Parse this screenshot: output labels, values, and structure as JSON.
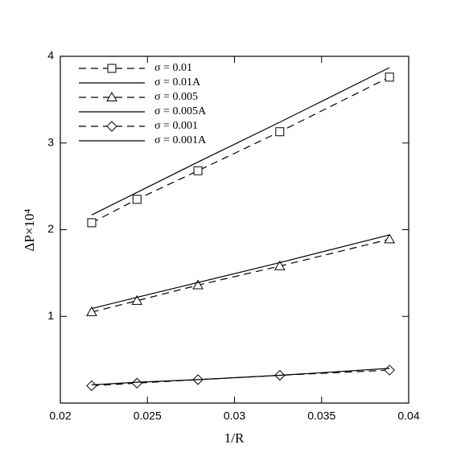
{
  "chart_data": {
    "type": "line",
    "x_label": "1/R",
    "y_label": "ΔP×10⁴",
    "x": [
      0.0218,
      0.0244,
      0.0279,
      0.0326,
      0.0389
    ],
    "xlim": [
      0.02,
      0.04
    ],
    "xticks": [
      0.02,
      0.025,
      0.03,
      0.035,
      0.04
    ],
    "ylim": [
      0,
      4
    ],
    "yticks": [
      1,
      2,
      3,
      4
    ],
    "legend": "upper left",
    "series": [
      {
        "name": "σ = 0.01",
        "color": "#000000",
        "line_style": "dashed",
        "marker": "square",
        "values": [
          2.08,
          2.35,
          2.68,
          3.13,
          3.76
        ]
      },
      {
        "name": "σ = 0.01A",
        "color": "#000000",
        "line_style": "solid",
        "marker": "none",
        "values": [
          2.17,
          2.43,
          2.78,
          3.24,
          3.87
        ]
      },
      {
        "name": "σ = 0.005",
        "color": "#000000",
        "line_style": "dashed",
        "marker": "triangle",
        "values": [
          1.05,
          1.18,
          1.36,
          1.58,
          1.89
        ]
      },
      {
        "name": "σ = 0.005A",
        "color": "#000000",
        "line_style": "solid",
        "marker": "none",
        "values": [
          1.09,
          1.22,
          1.39,
          1.62,
          1.94
        ]
      },
      {
        "name": "σ = 0.001",
        "color": "#000000",
        "line_style": "dashed",
        "marker": "diamond",
        "values": [
          0.2,
          0.23,
          0.27,
          0.32,
          0.38
        ]
      },
      {
        "name": "σ = 0.001A",
        "color": "#000000",
        "line_style": "solid",
        "marker": "none",
        "values": [
          0.21,
          0.24,
          0.27,
          0.32,
          0.4
        ]
      }
    ]
  }
}
